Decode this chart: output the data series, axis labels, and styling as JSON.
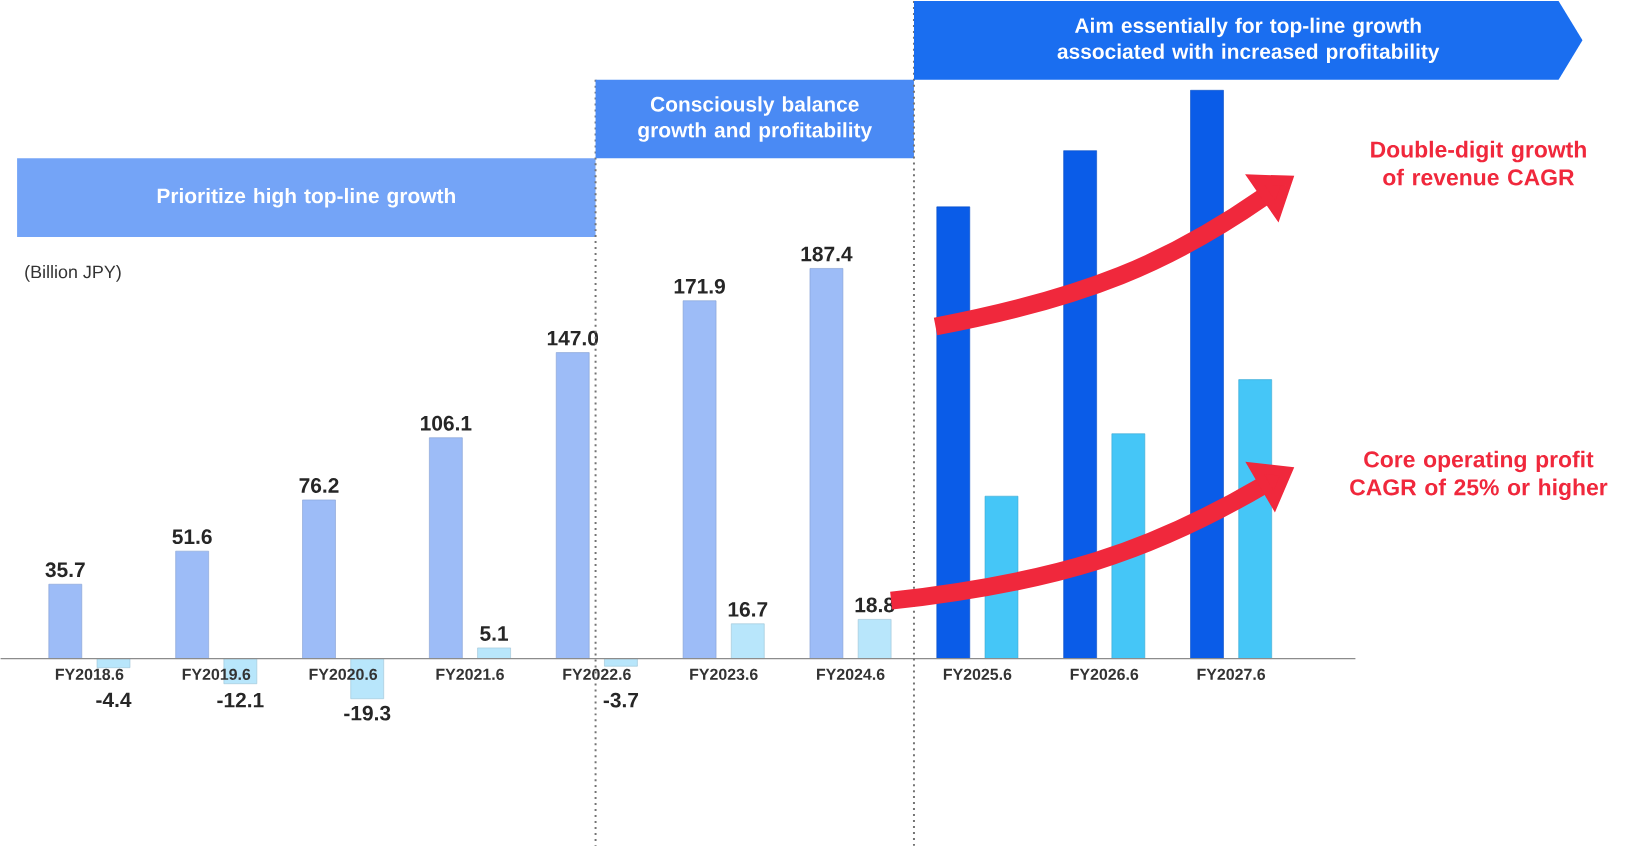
{
  "chart_data": {
    "type": "bar",
    "ylabel": "(Billion JPY)",
    "categories": [
      "FY2018.6",
      "FY2019.6",
      "FY2020.6",
      "FY2021.6",
      "FY2022.6",
      "FY2023.6",
      "FY2024.6",
      "FY2025.6",
      "FY2026.6",
      "FY2027.6"
    ],
    "series": [
      {
        "colors": [
          "#9dbcf7",
          "#9dbcf7",
          "#9dbcf7",
          "#9dbcf7",
          "#9dbcf7",
          "#9dbcf7",
          "#9dbcf7",
          "#0a5ce8",
          "#0a5ce8",
          "#0a5ce8"
        ],
        "values": [
          35.7,
          51.6,
          76.2,
          106.1,
          147.0,
          171.9,
          187.4,
          217,
          244,
          273
        ],
        "value_labels": [
          "35.7",
          "51.6",
          "76.2",
          "106.1",
          "147.0",
          "171.9",
          "187.4",
          null,
          null,
          null
        ]
      },
      {
        "colors": [
          "#b8e6fb",
          "#b8e6fb",
          "#b8e6fb",
          "#b8e6fb",
          "#b8e6fb",
          "#b8e6fb",
          "#b8e6fb",
          "#45c6f7",
          "#45c6f7",
          "#45c6f7"
        ],
        "values": [
          -4.4,
          -12.1,
          -19.3,
          5.1,
          -3.7,
          16.7,
          18.8,
          78,
          108,
          134
        ],
        "value_labels": [
          "-4.4",
          "-12.1",
          "-19.3",
          "5.1",
          "-3.7",
          "16.7",
          "18.8",
          null,
          null,
          null
        ]
      }
    ],
    "annotations": [
      "Prioritize high top-line growth",
      "Consciously balance growth and profitability",
      "Aim essentially for top-line growth associated with increased profitability",
      "Double-digit growth of revenue CAGR",
      "Core operating profit CAGR of 25% or higher"
    ]
  }
}
